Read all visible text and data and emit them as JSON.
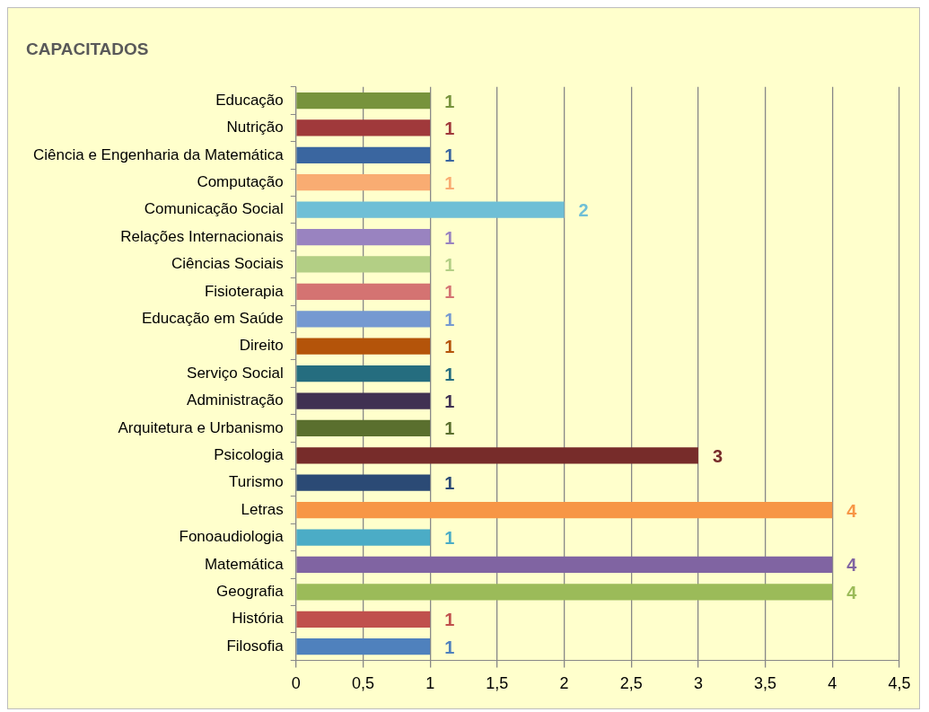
{
  "chart_data": {
    "type": "bar",
    "orientation": "horizontal",
    "title": "CAPACITADOS",
    "categories": [
      "Educação",
      "Nutrição",
      "Ciência e Engenharia da Matemática",
      "Computação",
      "Comunicação Social",
      "Relações Internacionais",
      "Ciências Sociais",
      "Fisioterapia",
      "Educação em Saúde",
      "Direito",
      "Serviço Social",
      "Administração",
      "Arquitetura e Urbanismo",
      "Psicologia",
      "Turismo",
      "Letras",
      "Fonoaudiologia",
      "Matemática",
      "Geografia",
      "História",
      "Filosofia"
    ],
    "values": [
      1,
      1,
      1,
      1,
      2,
      1,
      1,
      1,
      1,
      1,
      1,
      1,
      1,
      3,
      1,
      4,
      1,
      4,
      4,
      1,
      1
    ],
    "colors": [
      "#77933c",
      "#a0393b",
      "#3a66a0",
      "#f9ac72",
      "#6fbfd6",
      "#9983c0",
      "#b3cf85",
      "#d47372",
      "#7599d1",
      "#b4540a",
      "#256d7f",
      "#403152",
      "#5a6f2e",
      "#772c2a",
      "#2b4a75",
      "#f79646",
      "#4bacc6",
      "#8064a2",
      "#9bbb59",
      "#c0504d",
      "#4f81bd"
    ],
    "xlim": [
      0,
      4.5
    ],
    "xticks": [
      0,
      {
        "value": 0.5,
        "label": "0,5"
      },
      1,
      {
        "value": 1.5,
        "label": "1,5"
      },
      2,
      {
        "value": 2.5,
        "label": "2,5"
      },
      3,
      {
        "value": 3.5,
        "label": "3,5"
      },
      4,
      {
        "value": 4.5,
        "label": "4,5"
      }
    ],
    "grid": "x",
    "legend": false,
    "data_labels": true
  }
}
